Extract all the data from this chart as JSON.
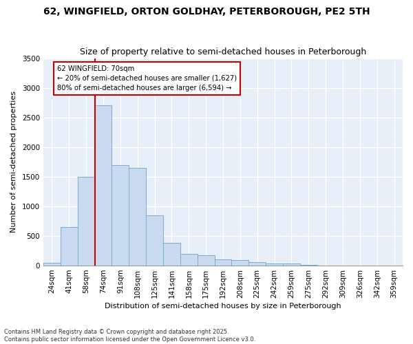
{
  "title1": "62, WINGFIELD, ORTON GOLDHAY, PETERBOROUGH, PE2 5TH",
  "title2": "Size of property relative to semi-detached houses in Peterborough",
  "xlabel": "Distribution of semi-detached houses by size in Peterborough",
  "ylabel": "Number of semi-detached properties",
  "categories": [
    "24sqm",
    "41sqm",
    "58sqm",
    "74sqm",
    "91sqm",
    "108sqm",
    "125sqm",
    "141sqm",
    "158sqm",
    "175sqm",
    "192sqm",
    "208sqm",
    "225sqm",
    "242sqm",
    "259sqm",
    "275sqm",
    "292sqm",
    "309sqm",
    "326sqm",
    "342sqm",
    "359sqm"
  ],
  "values": [
    50,
    650,
    1500,
    2700,
    1700,
    1650,
    850,
    380,
    200,
    175,
    100,
    90,
    55,
    40,
    30,
    15,
    5,
    3,
    2,
    1,
    0
  ],
  "bar_color": "#c9d9f0",
  "bar_edge_color": "#7aaad4",
  "vline_color": "#cc0000",
  "annotation_title": "62 WINGFIELD: 70sqm",
  "annotation_line1": "← 20% of semi-detached houses are smaller (1,627)",
  "annotation_line2": "80% of semi-detached houses are larger (6,594) →",
  "annotation_box_color": "#cc0000",
  "ylim": [
    0,
    3500
  ],
  "yticks": [
    0,
    500,
    1000,
    1500,
    2000,
    2500,
    3000,
    3500
  ],
  "background_color": "#e8eef8",
  "grid_color": "#ffffff",
  "footer": "Contains HM Land Registry data © Crown copyright and database right 2025.\nContains public sector information licensed under the Open Government Licence v3.0.",
  "title_fontsize": 10,
  "subtitle_fontsize": 9,
  "axis_label_fontsize": 8,
  "tick_fontsize": 7.5,
  "footer_fontsize": 6
}
